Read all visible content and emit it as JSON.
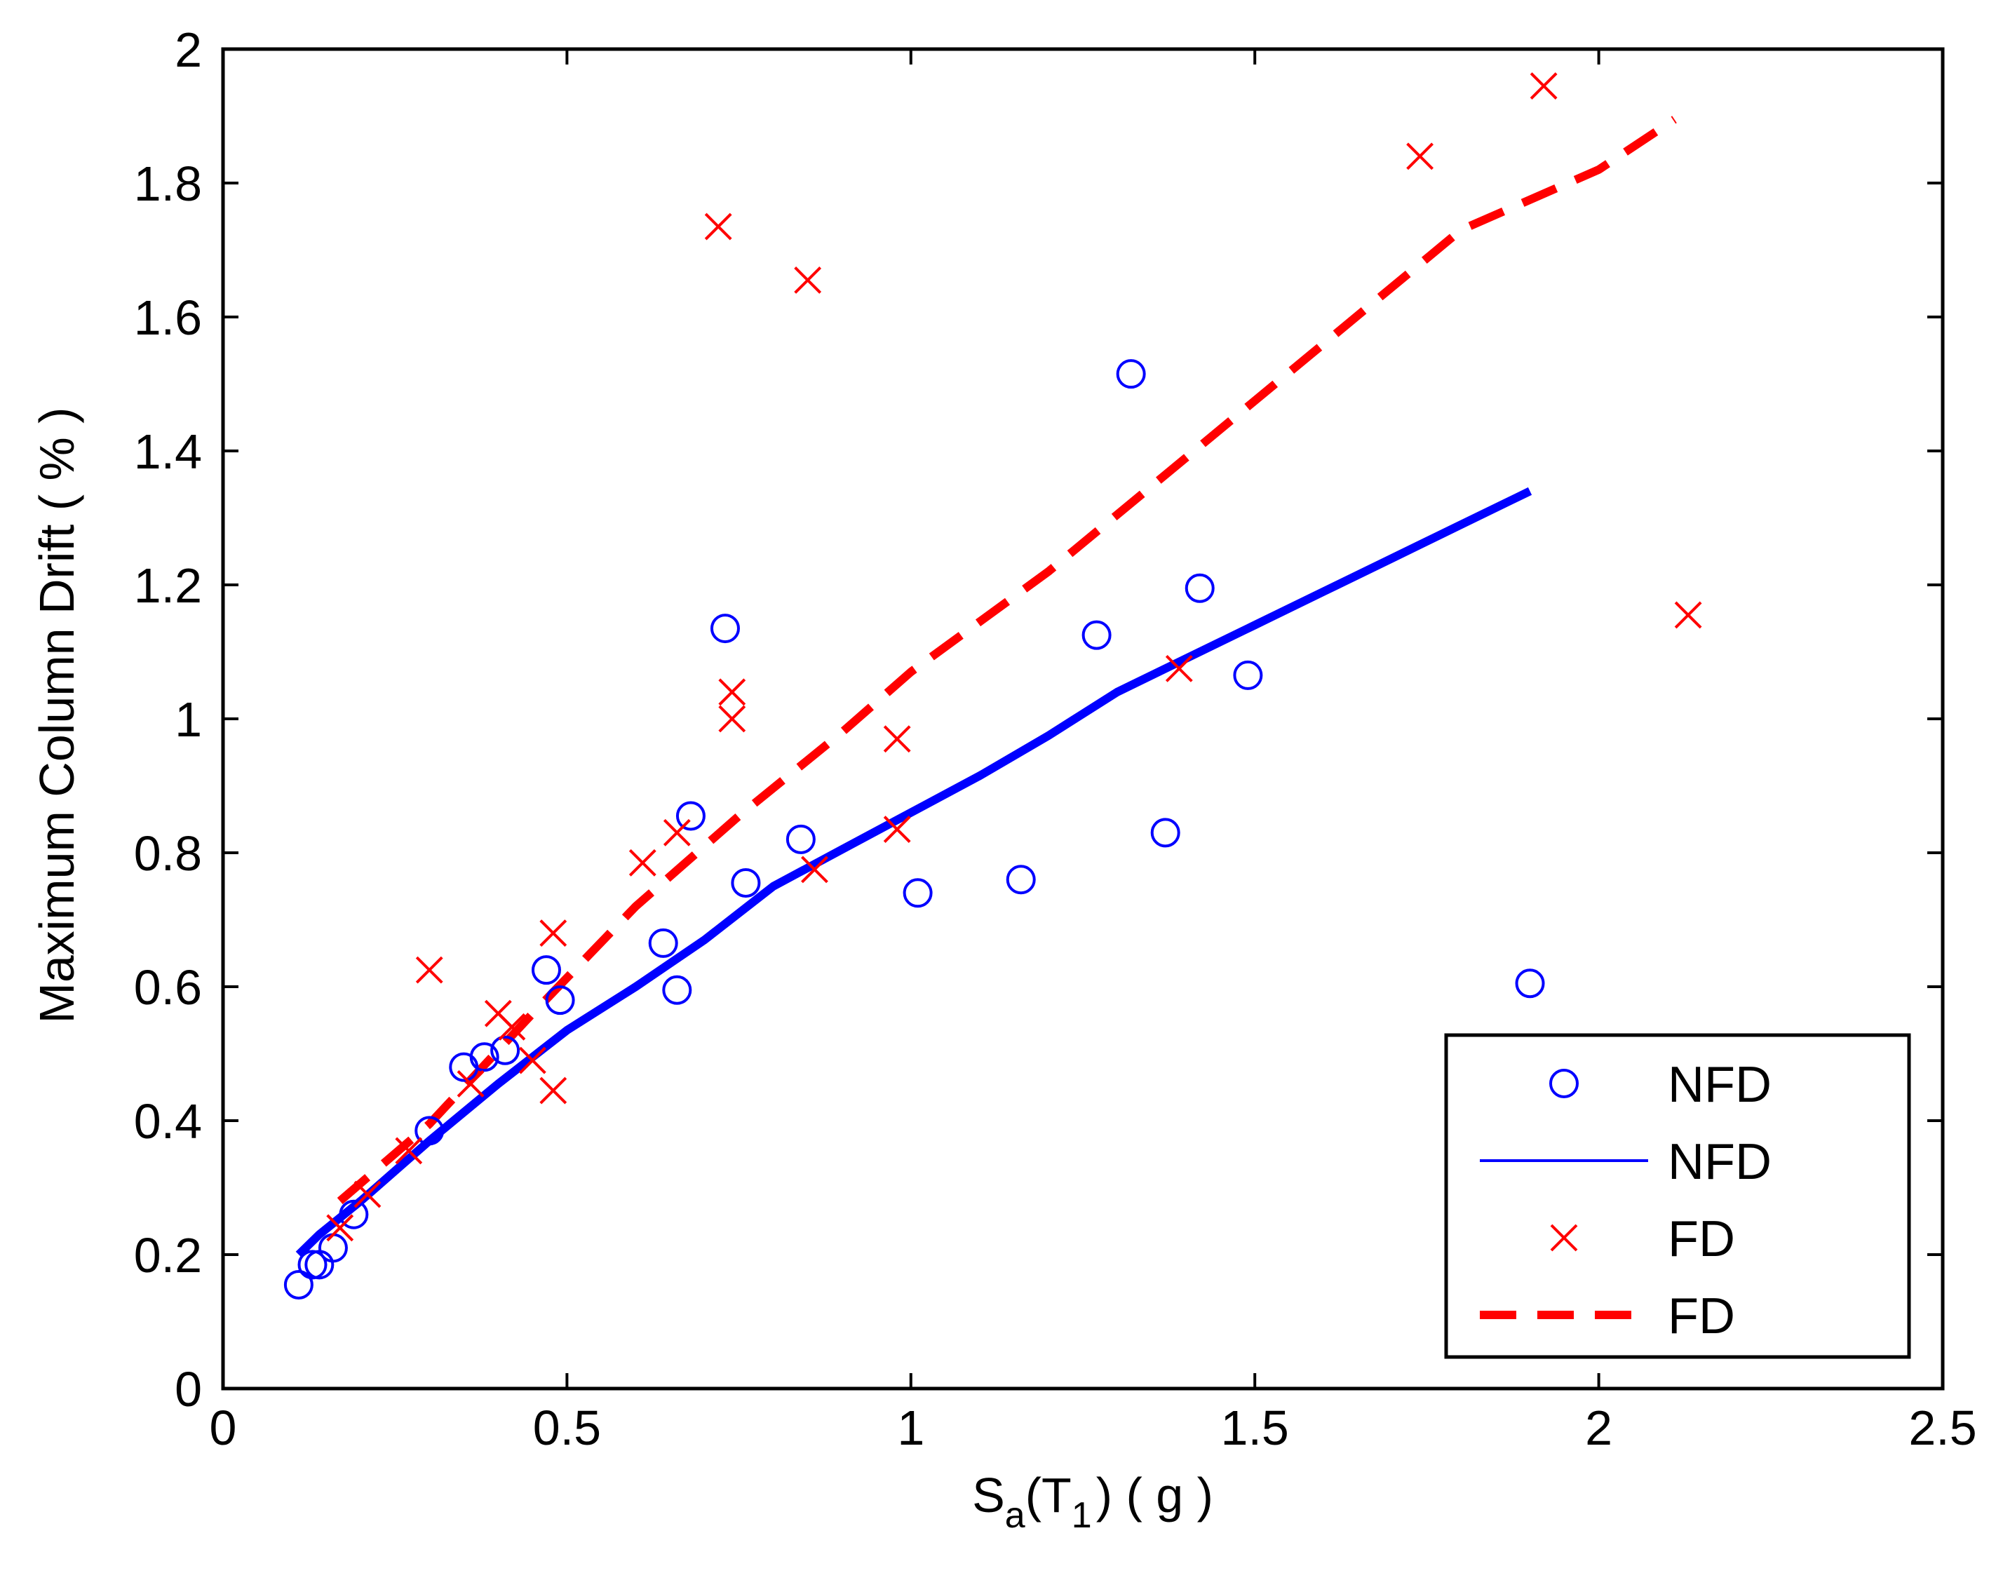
{
  "chart_data": {
    "type": "scatter",
    "title": "",
    "xlabel": {
      "main": "S",
      "sub": "a",
      "paren_open": "(T",
      "sub2": "1",
      "rest": ") ( g )"
    },
    "ylabel": "Maximum Column Drift ( % )",
    "xlim": [
      0,
      2.5
    ],
    "ylim": [
      0,
      2
    ],
    "xticks": [
      0,
      0.5,
      1,
      1.5,
      2,
      2.5
    ],
    "xtick_labels": [
      "0",
      "0.5",
      "1",
      "1.5",
      "2",
      "2.5"
    ],
    "yticks": [
      0,
      0.2,
      0.4,
      0.6,
      0.8,
      1,
      1.2,
      1.4,
      1.6,
      1.8,
      2
    ],
    "ytick_labels": [
      "0",
      "0.2",
      "0.4",
      "0.6",
      "0.8",
      "1",
      "1.2",
      "1.4",
      "1.6",
      "1.8",
      "2"
    ],
    "grid": false,
    "legend_position": "bottom-right",
    "series": [
      {
        "name": "NFD",
        "kind": "markers",
        "marker": "circle",
        "color": "#0000ff",
        "points": [
          [
            0.11,
            0.155
          ],
          [
            0.13,
            0.185
          ],
          [
            0.14,
            0.185
          ],
          [
            0.16,
            0.21
          ],
          [
            0.19,
            0.26
          ],
          [
            0.3,
            0.385
          ],
          [
            0.35,
            0.48
          ],
          [
            0.38,
            0.495
          ],
          [
            0.41,
            0.505
          ],
          [
            0.47,
            0.625
          ],
          [
            0.49,
            0.58
          ],
          [
            0.64,
            0.665
          ],
          [
            0.66,
            0.595
          ],
          [
            0.68,
            0.855
          ],
          [
            0.73,
            1.135
          ],
          [
            0.76,
            0.755
          ],
          [
            0.84,
            0.82
          ],
          [
            1.01,
            0.74
          ],
          [
            1.16,
            0.76
          ],
          [
            1.27,
            1.125
          ],
          [
            1.32,
            1.515
          ],
          [
            1.37,
            0.83
          ],
          [
            1.42,
            1.195
          ],
          [
            1.49,
            1.065
          ],
          [
            1.9,
            0.605
          ]
        ]
      },
      {
        "name": "NFD",
        "kind": "line",
        "style": "solid",
        "color": "#0000ff",
        "points": [
          [
            0.11,
            0.2
          ],
          [
            0.14,
            0.23
          ],
          [
            0.2,
            0.28
          ],
          [
            0.3,
            0.37
          ],
          [
            0.4,
            0.455
          ],
          [
            0.5,
            0.535
          ],
          [
            0.6,
            0.6
          ],
          [
            0.7,
            0.67
          ],
          [
            0.8,
            0.75
          ],
          [
            0.9,
            0.805
          ],
          [
            1.0,
            0.86
          ],
          [
            1.1,
            0.915
          ],
          [
            1.2,
            0.975
          ],
          [
            1.3,
            1.04
          ],
          [
            1.4,
            1.09
          ],
          [
            1.5,
            1.14
          ],
          [
            1.6,
            1.19
          ],
          [
            1.7,
            1.24
          ],
          [
            1.8,
            1.29
          ],
          [
            1.9,
            1.34
          ]
        ]
      },
      {
        "name": "FD",
        "kind": "markers",
        "marker": "x",
        "color": "#ff0000",
        "points": [
          [
            0.17,
            0.24
          ],
          [
            0.21,
            0.29
          ],
          [
            0.27,
            0.355
          ],
          [
            0.3,
            0.625
          ],
          [
            0.36,
            0.455
          ],
          [
            0.4,
            0.56
          ],
          [
            0.42,
            0.54
          ],
          [
            0.45,
            0.49
          ],
          [
            0.48,
            0.445
          ],
          [
            0.48,
            0.68
          ],
          [
            0.61,
            0.785
          ],
          [
            0.66,
            0.83
          ],
          [
            0.72,
            1.735
          ],
          [
            0.74,
            1.04
          ],
          [
            0.74,
            1.0
          ],
          [
            0.85,
            1.655
          ],
          [
            0.86,
            0.775
          ],
          [
            0.98,
            0.97
          ],
          [
            0.98,
            0.835
          ],
          [
            1.39,
            1.075
          ],
          [
            1.74,
            1.84
          ],
          [
            1.92,
            1.945
          ],
          [
            2.13,
            1.155
          ]
        ]
      },
      {
        "name": "FD",
        "kind": "line",
        "style": "dashed",
        "color": "#ff0000",
        "points": [
          [
            0.17,
            0.28
          ],
          [
            0.3,
            0.395
          ],
          [
            0.45,
            0.56
          ],
          [
            0.6,
            0.72
          ],
          [
            0.75,
            0.855
          ],
          [
            0.9,
            0.98
          ],
          [
            1.0,
            1.07
          ],
          [
            1.2,
            1.22
          ],
          [
            1.4,
            1.39
          ],
          [
            1.6,
            1.56
          ],
          [
            1.8,
            1.73
          ],
          [
            2.0,
            1.82
          ],
          [
            2.11,
            1.895
          ]
        ]
      }
    ]
  }
}
